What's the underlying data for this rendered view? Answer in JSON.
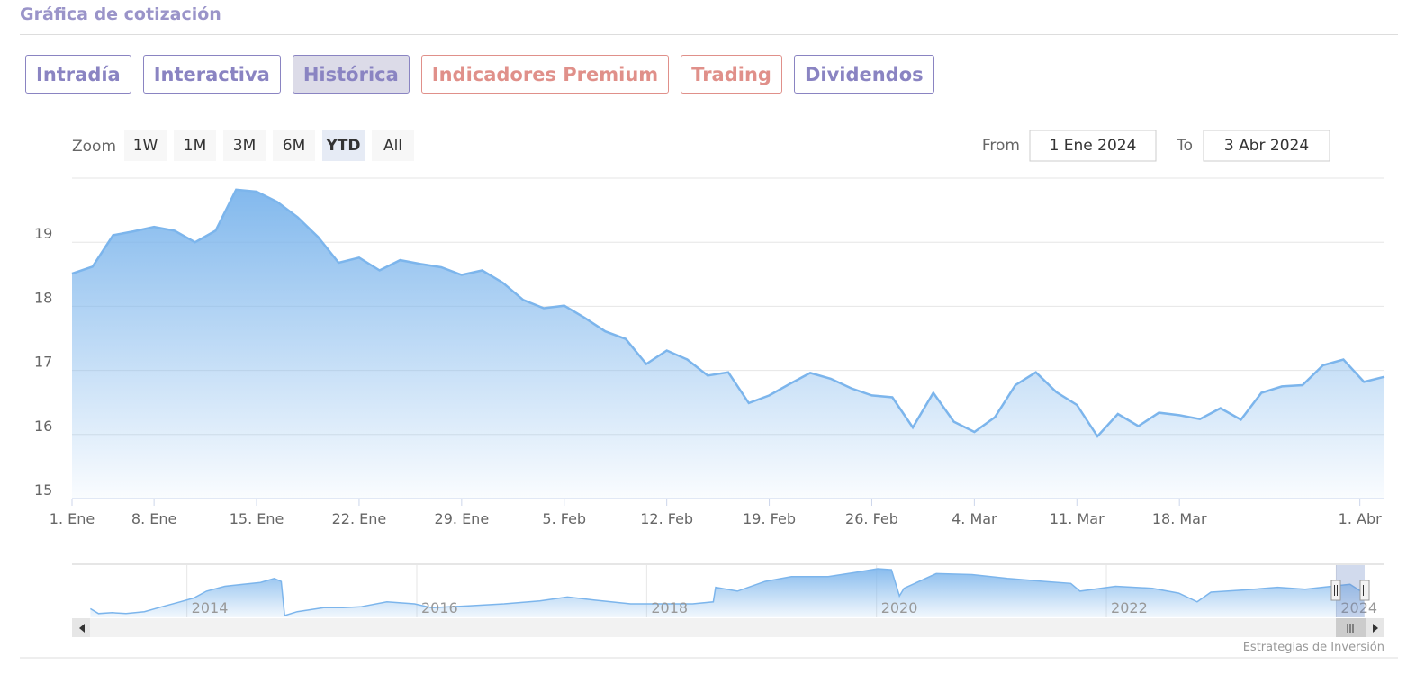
{
  "header": {
    "title": "Gráfica de cotización"
  },
  "tabs": {
    "items": [
      {
        "label": "Intradía",
        "color": "#8a84c2"
      },
      {
        "label": "Interactiva",
        "color": "#8a84c2"
      },
      {
        "label": "Histórica",
        "color": "#8a84c2"
      },
      {
        "label": "Indicadores Premium",
        "color": "#e0908a"
      },
      {
        "label": "Trading",
        "color": "#e0908a"
      },
      {
        "label": "Dividendos",
        "color": "#8a84c2"
      }
    ],
    "active": 2
  },
  "zoom": {
    "label": "Zoom",
    "buttons": [
      "1W",
      "1M",
      "3M",
      "6M",
      "YTD",
      "All"
    ],
    "active": 4
  },
  "range": {
    "from_label": "From",
    "from": "1 Ene 2024",
    "to_label": "To",
    "to": "3 Abr 2024"
  },
  "chart_data": {
    "type": "area",
    "ordinal": true,
    "color": "#7cb5ec",
    "grid": true,
    "x": [
      "2024-01-02",
      "2024-01-03",
      "2024-01-04",
      "2024-01-05",
      "2024-01-08",
      "2024-01-09",
      "2024-01-10",
      "2024-01-11",
      "2024-01-12",
      "2024-01-15",
      "2024-01-16",
      "2024-01-17",
      "2024-01-18",
      "2024-01-19",
      "2024-01-22",
      "2024-01-23",
      "2024-01-24",
      "2024-01-25",
      "2024-01-26",
      "2024-01-29",
      "2024-01-30",
      "2024-01-31",
      "2024-02-01",
      "2024-02-02",
      "2024-02-05",
      "2024-02-06",
      "2024-02-07",
      "2024-02-08",
      "2024-02-09",
      "2024-02-12",
      "2024-02-13",
      "2024-02-14",
      "2024-02-15",
      "2024-02-16",
      "2024-02-19",
      "2024-02-20",
      "2024-02-21",
      "2024-02-22",
      "2024-02-23",
      "2024-02-26",
      "2024-02-27",
      "2024-02-28",
      "2024-02-29",
      "2024-03-01",
      "2024-03-04",
      "2024-03-05",
      "2024-03-06",
      "2024-03-07",
      "2024-03-08",
      "2024-03-11",
      "2024-03-12",
      "2024-03-13",
      "2024-03-14",
      "2024-03-15",
      "2024-03-18",
      "2024-03-19",
      "2024-03-20",
      "2024-03-21",
      "2024-03-22",
      "2024-03-25",
      "2024-03-26",
      "2024-03-27",
      "2024-03-28",
      "2024-04-02",
      "2024-04-03"
    ],
    "values": [
      18.51,
      18.62,
      19.11,
      19.17,
      19.24,
      19.18,
      19.0,
      19.18,
      19.82,
      19.79,
      19.63,
      19.39,
      19.08,
      18.68,
      18.76,
      18.56,
      18.72,
      18.66,
      18.61,
      18.49,
      18.56,
      18.37,
      18.1,
      17.97,
      18.01,
      17.82,
      17.61,
      17.49,
      17.1,
      17.31,
      17.17,
      16.92,
      16.97,
      16.49,
      16.61,
      16.79,
      16.96,
      16.87,
      16.72,
      16.61,
      16.58,
      16.11,
      16.65,
      16.2,
      16.04,
      16.27,
      16.77,
      16.97,
      16.66,
      16.46,
      15.97,
      16.32,
      16.13,
      16.34,
      16.3,
      16.24,
      16.41,
      16.23,
      16.65,
      16.75,
      16.77,
      17.08,
      17.17,
      16.82,
      16.9
    ],
    "ylim": [
      15,
      20
    ],
    "yticks": [
      15,
      16,
      17,
      18,
      19
    ],
    "xticks": [
      {
        "value": "2024-01-01",
        "label": "1. Ene"
      },
      {
        "value": "2024-01-08",
        "label": "8. Ene"
      },
      {
        "value": "2024-01-15",
        "label": "15. Ene"
      },
      {
        "value": "2024-01-22",
        "label": "22. Ene"
      },
      {
        "value": "2024-01-29",
        "label": "29. Ene"
      },
      {
        "value": "2024-02-05",
        "label": "5. Feb"
      },
      {
        "value": "2024-02-12",
        "label": "12. Feb"
      },
      {
        "value": "2024-02-19",
        "label": "19. Feb"
      },
      {
        "value": "2024-02-26",
        "label": "26. Feb"
      },
      {
        "value": "2024-03-04",
        "label": "4. Mar"
      },
      {
        "value": "2024-03-11",
        "label": "11. Mar"
      },
      {
        "value": "2024-03-18",
        "label": "18. Mar"
      },
      {
        "value": "2024-04-01",
        "label": "1. Abr"
      }
    ]
  },
  "navigator": {
    "type": "area",
    "color": "#7cb5ec",
    "x": [
      2013.16,
      2013.23,
      2013.35,
      2013.47,
      2013.63,
      2013.78,
      2013.94,
      2014.06,
      2014.17,
      2014.33,
      2014.49,
      2014.64,
      2014.76,
      2014.82,
      2014.85,
      2014.96,
      2015.19,
      2015.35,
      2015.51,
      2015.74,
      2015.98,
      2016.13,
      2016.45,
      2016.76,
      2017.07,
      2017.31,
      2017.54,
      2017.86,
      2018.17,
      2018.4,
      2018.58,
      2018.6,
      2018.79,
      2019.03,
      2019.26,
      2019.58,
      2019.81,
      2020.01,
      2020.13,
      2020.2,
      2020.24,
      2020.52,
      2020.83,
      2021.14,
      2021.46,
      2021.69,
      2021.77,
      2022.08,
      2022.4,
      2022.63,
      2022.79,
      2022.91,
      2023.18,
      2023.49,
      2023.73,
      2023.96,
      2024.12,
      2024.24
    ],
    "values": [
      13.4,
      12.4,
      12.6,
      12.4,
      12.8,
      13.8,
      14.8,
      15.6,
      17.0,
      18.0,
      18.4,
      18.8,
      19.6,
      19.0,
      12.0,
      12.8,
      13.6,
      13.6,
      13.8,
      14.8,
      14.4,
      13.6,
      14.0,
      14.4,
      15.0,
      15.8,
      15.2,
      14.4,
      14.4,
      14.4,
      14.8,
      17.8,
      17.0,
      19.0,
      20.0,
      20.0,
      20.8,
      21.6,
      21.4,
      16.0,
      17.6,
      20.6,
      20.4,
      19.6,
      19.0,
      18.6,
      17.0,
      18.0,
      17.6,
      16.6,
      14.8,
      16.8,
      17.2,
      17.8,
      17.4,
      18.0,
      18.4,
      16.6
    ],
    "xlim": [
      2013,
      2024.42
    ],
    "xticks": [
      2014,
      2016,
      2018,
      2020,
      2022,
      2024
    ]
  },
  "credit": "Estrategias de Inversión"
}
